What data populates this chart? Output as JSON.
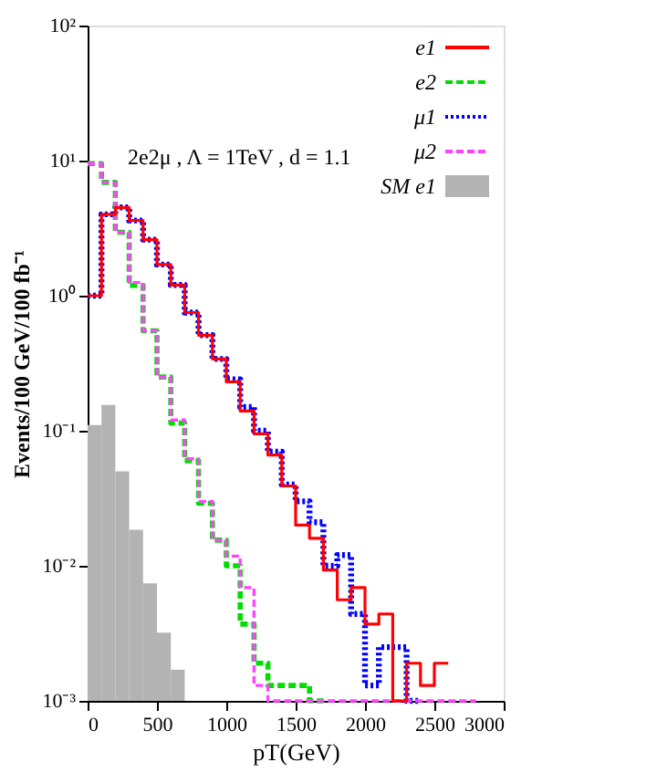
{
  "chart_data": {
    "type": "histogram",
    "xlabel": "pT(GeV)",
    "ylabel": "Events/100 GeV/100 fb⁻¹",
    "annotations": [
      "2e2μ , Λ = 1TeV , d = 1.1"
    ],
    "bins": [
      0,
      100,
      200,
      300,
      400,
      500,
      600,
      700
    ],
    "series": [
      {
        "name": "e1",
        "type": "step",
        "color": "#ff0000",
        "line_style": "solid",
        "x": [
          0,
          100,
          200,
          300,
          400,
          500,
          600,
          700,
          800,
          900,
          1000,
          1100,
          1200,
          1300,
          1400,
          1500,
          1600,
          1700,
          1800,
          1900,
          2000,
          2100,
          2200,
          2300,
          2400,
          2500,
          2600
        ],
        "values": [
          1.0,
          4.0,
          4.5,
          3.6,
          2.6,
          1.7,
          1.2,
          0.75,
          0.51,
          0.34,
          0.23,
          0.14,
          0.095,
          0.066,
          0.039,
          0.02,
          0.016,
          0.0093,
          0.0056,
          0.0069,
          0.0037,
          0.0044,
          0.001,
          0.0019,
          0.0013,
          0.0019,
          0.0019
        ]
      },
      {
        "name": "e2",
        "type": "step",
        "color": "#00dd00",
        "line_style": "dashed",
        "x": [
          0,
          100,
          200,
          300,
          400,
          500,
          600,
          700,
          800,
          900,
          1000,
          1100,
          1200,
          1300,
          1400,
          1500,
          1600,
          1700
        ],
        "values": [
          9.5,
          6.9,
          2.95,
          1.19,
          0.55,
          0.25,
          0.114,
          0.06,
          0.029,
          0.0155,
          0.01,
          0.0037,
          0.0019,
          0.0013,
          0.0013,
          0.0013,
          0.001,
          0.001
        ]
      },
      {
        "name": "μ1",
        "type": "step",
        "color": "#0000ff",
        "line_style": "dotted",
        "x": [
          0,
          100,
          200,
          300,
          400,
          500,
          600,
          700,
          800,
          900,
          1000,
          1100,
          1200,
          1300,
          1400,
          1500,
          1600,
          1700,
          1800,
          1900,
          2000,
          2100,
          2200,
          2300,
          2400
        ],
        "values": [
          1.0,
          4.0,
          4.5,
          3.6,
          2.6,
          1.7,
          1.2,
          0.75,
          0.51,
          0.34,
          0.24,
          0.15,
          0.1,
          0.07,
          0.04,
          0.03,
          0.021,
          0.01,
          0.012,
          0.0044,
          0.0013,
          0.0025,
          0.0025,
          0.001,
          0.001
        ]
      },
      {
        "name": "μ2",
        "type": "step",
        "color": "#ff44ff",
        "line_style": "dashed",
        "x": [
          0,
          100,
          200,
          300,
          400,
          500,
          600,
          700,
          800,
          900,
          1000,
          1100,
          1200,
          1300,
          1400,
          1500,
          1600,
          1700,
          1800,
          1900,
          2000,
          2100,
          2200,
          2300,
          2400,
          2500,
          2600,
          2700,
          2800
        ],
        "values": [
          9.5,
          6.9,
          2.95,
          1.25,
          0.55,
          0.25,
          0.12,
          0.062,
          0.03,
          0.0155,
          0.0118,
          0.0069,
          0.0013,
          0.001,
          0.001,
          0.001,
          0.001,
          0.001,
          0.001,
          0.001,
          0.001,
          0.001,
          0.001,
          0.001,
          0.001,
          0.001,
          0.001,
          0.001,
          0.001
        ]
      },
      {
        "name": "SM e1",
        "type": "histogram",
        "color": "#b3b3b3",
        "values": [
          0.11,
          0.155,
          0.05,
          0.0185,
          0.0074,
          0.0032,
          0.0017
        ]
      }
    ],
    "xlim": [
      0,
      3000
    ],
    "xticks": [
      0,
      500,
      1000,
      1500,
      2000,
      2500,
      3000
    ],
    "ylim": [
      0.001,
      100
    ],
    "log": true,
    "yticks": [
      {
        "value": 0.001,
        "label": "10⁻³"
      },
      {
        "value": 0.01,
        "label": "10⁻²"
      },
      {
        "value": 0.1,
        "label": "10⁻¹"
      },
      {
        "value": 1,
        "label": "10⁰"
      },
      {
        "value": 10,
        "label": "10¹"
      },
      {
        "value": 100,
        "label": "10²"
      }
    ],
    "grid": false,
    "legend": "top right"
  }
}
